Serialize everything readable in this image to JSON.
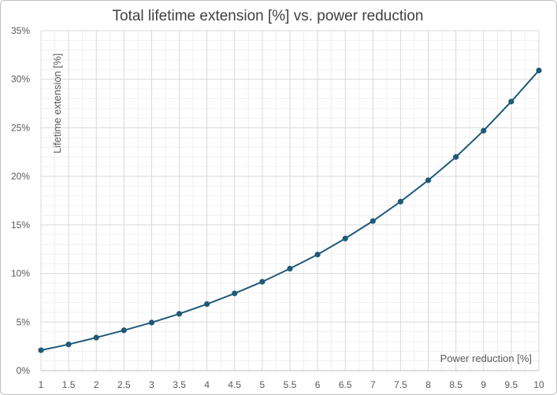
{
  "chart_data": {
    "type": "line",
    "title": "Total lifetime extension [%] vs. power reduction",
    "xlabel": "Power reduction [%]",
    "ylabel": "Lifetime extension [%]",
    "x": [
      1,
      1.5,
      2,
      2.5,
      3,
      3.5,
      4,
      4.5,
      5,
      5.5,
      6,
      6.5,
      7,
      7.5,
      8,
      8.5,
      9,
      9.5,
      10
    ],
    "x_tick_labels": [
      "1",
      "1.5",
      "2",
      "2.5",
      "3",
      "3.5",
      "4",
      "4.5",
      "5",
      "5.5",
      "6",
      "6.5",
      "7",
      "7.5",
      "8",
      "8.5",
      "9",
      "9.5",
      "10"
    ],
    "series": [
      {
        "values": [
          2.1,
          2.7,
          3.4,
          4.15,
          4.95,
          5.85,
          6.85,
          7.95,
          9.15,
          10.5,
          11.95,
          13.6,
          15.4,
          17.4,
          19.6,
          22.0,
          24.7,
          27.7,
          30.9
        ]
      }
    ],
    "ylim": [
      0,
      35
    ],
    "y_ticks": [
      0,
      5,
      10,
      15,
      20,
      25,
      30,
      35
    ],
    "y_tick_labels": [
      "0%",
      "5%",
      "10%",
      "15%",
      "20%",
      "25%",
      "30%",
      "35%"
    ],
    "grid": true,
    "minor_grid": true,
    "line_color": "#1f5a78",
    "marker_color": "#1f5a78"
  }
}
